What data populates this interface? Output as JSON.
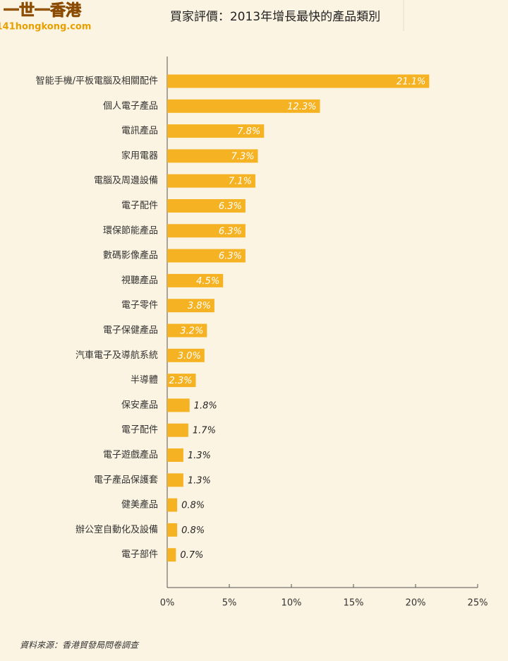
{
  "logo": {
    "name": "一世一香港",
    "site": "141hongkong.com"
  },
  "chart_data": {
    "type": "bar",
    "title": "買家評價：2013年增長最快的產品類別",
    "categories": [
      "智能手機/平板電腦及相關配件",
      "個人電子產品",
      "電訊產品",
      "家用電器",
      "電腦及周邊設備",
      "電子配件",
      "環保節能產品",
      "數碼影像產品",
      "視聽產品",
      "電子零件",
      "電子保健產品",
      "汽車電子及導航系統",
      "半導體",
      "保安產品",
      "電子配件",
      "電子遊戲產品",
      "電子產品保護套",
      "健美產品",
      "辦公室自動化及設備",
      "電子部件"
    ],
    "values": [
      21.1,
      12.3,
      7.8,
      7.3,
      7.1,
      6.3,
      6.3,
      6.3,
      4.5,
      3.8,
      3.2,
      3.0,
      2.3,
      1.8,
      1.7,
      1.3,
      1.3,
      0.8,
      0.8,
      0.7
    ],
    "value_labels": [
      "21.1%",
      "12.3%",
      "7.8%",
      "7.3%",
      "7.1%",
      "6.3%",
      "6.3%",
      "6.3%",
      "4.5%",
      "3.8%",
      "3.2%",
      "3.0%",
      "2.3%",
      "1.8%",
      "1.7%",
      "1.3%",
      "1.3%",
      "0.8%",
      "0.8%",
      "0.7%"
    ],
    "color": "#f5b324",
    "xlim": [
      0,
      25
    ],
    "xticks": [
      {
        "value": 0,
        "label": "0%"
      },
      {
        "value": 5,
        "label": "5%"
      },
      {
        "value": 10,
        "label": "10%"
      },
      {
        "value": 15,
        "label": "15%"
      },
      {
        "value": 20,
        "label": "20%"
      },
      {
        "value": 25,
        "label": "25%"
      }
    ],
    "source": "資料來源：香港貿發局問卷調查"
  }
}
